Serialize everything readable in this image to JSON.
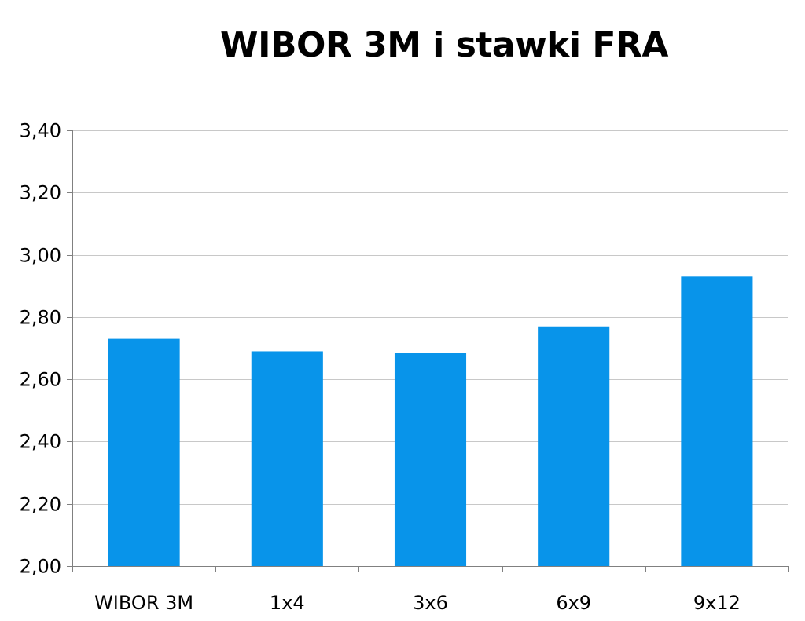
{
  "chart_data": {
    "type": "bar",
    "title": "WIBOR 3M i stawki FRA",
    "categories": [
      "WIBOR 3M",
      "1x4",
      "3x6",
      "6x9",
      "9x12"
    ],
    "values": [
      2.73,
      2.69,
      2.685,
      2.77,
      2.93
    ],
    "ylim": [
      2.0,
      3.4
    ],
    "yticks": [
      2.0,
      2.2,
      2.4,
      2.6,
      2.8,
      3.0,
      3.2,
      3.4
    ],
    "ytick_labels": [
      "2,00",
      "2,20",
      "2,40",
      "2,60",
      "2,80",
      "3,00",
      "3,20",
      "3,40"
    ],
    "xlabel": "",
    "ylabel": "",
    "grid": true,
    "legend": "none",
    "bar_color": "#0894ea",
    "grid_color": "#c8c8c8",
    "axis_color": "#808080"
  }
}
